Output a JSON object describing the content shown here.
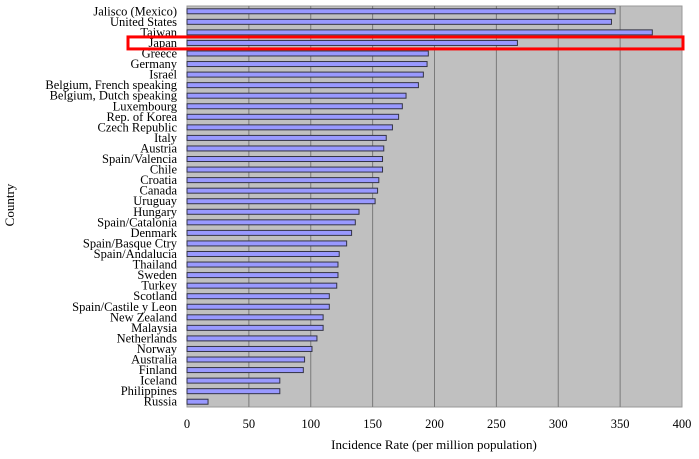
{
  "chart_data": {
    "type": "bar",
    "orientation": "horizontal",
    "title": "",
    "xlabel": "Incidence Rate (per million population)",
    "ylabel": "Country",
    "xlim": [
      0,
      400
    ],
    "xticks": [
      0,
      50,
      100,
      150,
      200,
      250,
      300,
      350,
      400
    ],
    "grid": true,
    "colors": {
      "bar": "#9999ff",
      "bar_edge": "#333344",
      "plot_bg": "#c0c0c0",
      "grid": "#7a7a7a",
      "highlight": "#ff0000"
    },
    "highlighted_category": "Japan",
    "categories": [
      "Jalisco (Mexico)",
      "United States",
      "Taiwan",
      "Japan",
      "Greece",
      "Germany",
      "Israel",
      "Belgium, French speaking",
      "Belgium, Dutch speaking",
      "Luxembourg",
      "Rep. of Korea",
      "Czech Republic",
      "Italy",
      "Austria",
      "Spain/Valencia",
      "Chile",
      "Croatia",
      "Canada",
      "Uruguay",
      "Hungary",
      "Spain/Catalonia",
      "Denmark",
      "Spain/Basque Ctry",
      "Spain/Andalucia",
      "Thailand",
      "Sweden",
      "Turkey",
      "Scotland",
      "Spain/Castile y Leon",
      "New Zealand",
      "Malaysia",
      "Netherlands",
      "Norway",
      "Australia",
      "Finland",
      "Iceland",
      "Philippines",
      "Russia"
    ],
    "values": [
      346,
      343,
      376,
      267,
      195,
      194,
      191,
      187,
      177,
      174,
      171,
      166,
      161,
      159,
      158,
      158,
      155,
      154,
      152,
      139,
      136,
      133,
      129,
      123,
      122,
      122,
      121,
      115,
      115,
      110,
      110,
      105,
      101,
      95,
      94,
      75,
      75,
      17
    ]
  }
}
